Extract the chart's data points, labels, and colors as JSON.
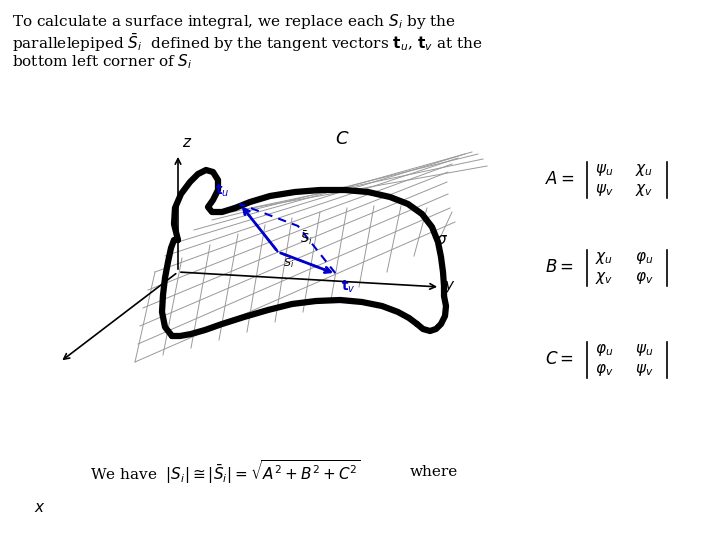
{
  "bg_color": "#ffffff",
  "fig_width": 7.2,
  "fig_height": 5.4,
  "dpi": 100,
  "text_color": "#000000",
  "blue_color": "#0000cc",
  "grid_color": "#999999",
  "title_line1": "To calculate a surface integral, we replace each $S_i$ by the",
  "title_line2": "parallelepiped $\\bar{S}_i$  defined by the tangent vectors $\\mathbf{t}_u$, $\\mathbf{t}_v$ at the",
  "title_line3": "bottom left corner of $S_i$",
  "bottom_text_1": "We have  $|S_i|\\cong|\\bar{S}_i| = \\sqrt{A^2+B^2+C^2}$",
  "bottom_text_2": "where",
  "label_C": "$C$",
  "label_sigma": "$\\sigma$",
  "label_z": "$z$",
  "label_y": "$y$",
  "label_x": "$x$"
}
